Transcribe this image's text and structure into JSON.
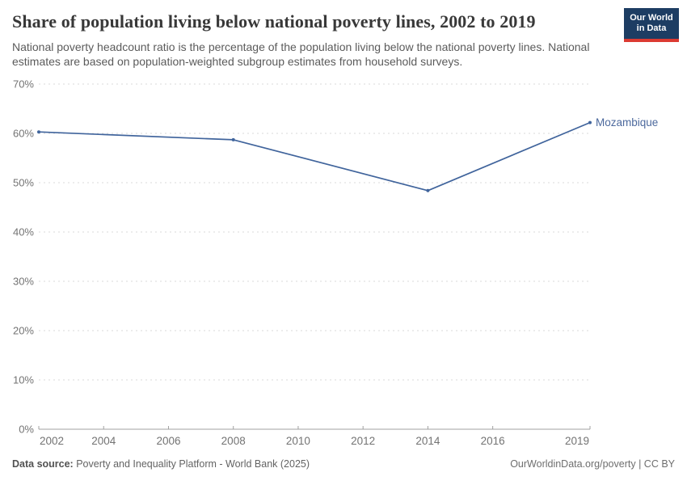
{
  "header": {
    "title": "Share of population living below national poverty lines, 2002 to 2019",
    "subtitle": "National poverty headcount ratio is the percentage of the population living below the national poverty lines. National estimates are based on population-weighted subgroup estimates from household surveys.",
    "logo": {
      "line1": "Our World",
      "line2": "in Data",
      "bg_color": "#1d3d63",
      "accent_color": "#dc3a32"
    }
  },
  "chart_data": {
    "type": "line",
    "title": "Share of population living below national poverty lines, 2002 to 2019",
    "xlabel": "",
    "ylabel": "",
    "xlim": [
      2002,
      2019
    ],
    "ylim": [
      0,
      70
    ],
    "grid": "horizontal-dashed",
    "legend_position": "end-of-line-label",
    "x_ticks": [
      {
        "v": 2002,
        "label": "2002"
      },
      {
        "v": 2004,
        "label": "2004"
      },
      {
        "v": 2006,
        "label": "2006"
      },
      {
        "v": 2008,
        "label": "2008"
      },
      {
        "v": 2010,
        "label": "2010"
      },
      {
        "v": 2012,
        "label": "2012"
      },
      {
        "v": 2014,
        "label": "2014"
      },
      {
        "v": 2016,
        "label": "2016"
      },
      {
        "v": 2019,
        "label": "2019"
      }
    ],
    "y_ticks": [
      {
        "v": 0,
        "label": "0%"
      },
      {
        "v": 10,
        "label": "10%"
      },
      {
        "v": 20,
        "label": "20%"
      },
      {
        "v": 30,
        "label": "30%"
      },
      {
        "v": 40,
        "label": "40%"
      },
      {
        "v": 50,
        "label": "50%"
      },
      {
        "v": 60,
        "label": "60%"
      },
      {
        "v": 70,
        "label": "70%"
      }
    ],
    "series": [
      {
        "name": "Mozambique",
        "color": "#40649c",
        "label_color": "#4c699d",
        "points": [
          {
            "x": 2002,
            "y": 60.3
          },
          {
            "x": 2008,
            "y": 58.7
          },
          {
            "x": 2014,
            "y": 48.4
          },
          {
            "x": 2019,
            "y": 62.2
          }
        ]
      }
    ],
    "colors": {
      "gridline": "#d9d9d9",
      "axis": "#a0a0a0",
      "tick_label": "#737373"
    }
  },
  "footer": {
    "source_label": "Data source:",
    "source_text": "Poverty and Inequality Platform - World Bank (2025)",
    "rights": "OurWorldinData.org/poverty | CC BY"
  }
}
